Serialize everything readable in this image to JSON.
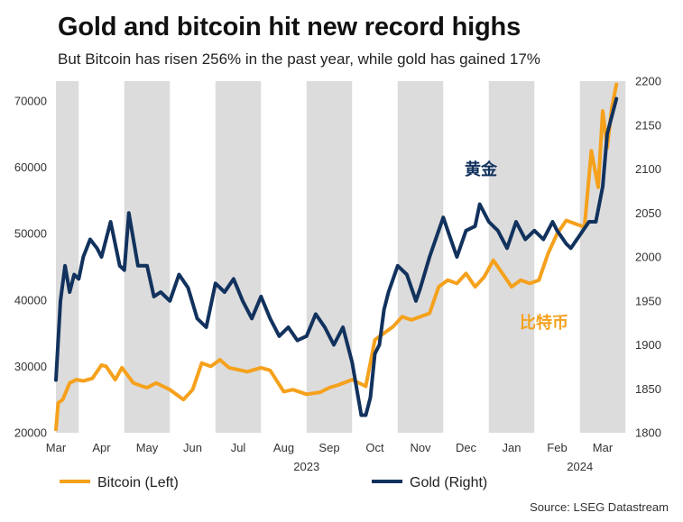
{
  "header": {
    "title": "Gold and bitcoin hit new record highs",
    "subtitle": "But Bitcoin has risen 256% in the past year, while gold has gained 17%"
  },
  "legend": {
    "bitcoin": "Bitcoin (Left)",
    "gold": "Gold (Right)"
  },
  "annotations": {
    "gold": "黄金",
    "bitcoin": "比特币"
  },
  "source": "Source: LSEG Datastream",
  "colors": {
    "bitcoin": "#f5a11c",
    "gold": "#12325e",
    "band": "#dcdcdc"
  },
  "chart_data": {
    "type": "line",
    "months": [
      "Mar",
      "Apr",
      "May",
      "Jun",
      "Jul",
      "Aug",
      "Sep",
      "Oct",
      "Nov",
      "Dec",
      "Jan",
      "Feb",
      "Mar"
    ],
    "years": [
      {
        "label": "2023",
        "month_index": 5.5
      },
      {
        "label": "2024",
        "month_index": 11.5
      }
    ],
    "left_axis": {
      "label": "Bitcoin",
      "ylim": [
        20000,
        73000
      ],
      "ticks": [
        "20000",
        "30000",
        "40000",
        "50000",
        "60000",
        "70000"
      ]
    },
    "right_axis": {
      "label": "Gold",
      "ylim": [
        1800,
        2200
      ],
      "ticks": [
        "1800",
        "1850",
        "1900",
        "1950",
        "2000",
        "2050",
        "2100",
        "2150",
        "2200"
      ]
    },
    "series": [
      {
        "name": "Bitcoin (Left)",
        "axis": "left",
        "x": [
          0.0,
          0.05,
          0.15,
          0.3,
          0.45,
          0.6,
          0.8,
          1.0,
          1.1,
          1.3,
          1.45,
          1.7,
          1.9,
          2.0,
          2.2,
          2.5,
          2.8,
          3.0,
          3.2,
          3.4,
          3.6,
          3.8,
          4.0,
          4.2,
          4.5,
          4.7,
          5.0,
          5.2,
          5.5,
          5.8,
          6.0,
          6.2,
          6.5,
          6.8,
          7.0,
          7.2,
          7.4,
          7.6,
          7.8,
          8.0,
          8.2,
          8.4,
          8.6,
          8.8,
          9.0,
          9.2,
          9.4,
          9.6,
          9.8,
          10.0,
          10.2,
          10.4,
          10.6,
          10.8,
          11.0,
          11.2,
          11.4,
          11.6,
          11.75,
          11.9,
          12.0,
          12.1,
          12.2,
          12.3
        ],
        "values": [
          20500,
          24500,
          25000,
          27500,
          28000,
          27800,
          28200,
          30200,
          30000,
          28000,
          29800,
          27500,
          27000,
          26800,
          27500,
          26500,
          25000,
          26500,
          30500,
          30000,
          31000,
          29800,
          29500,
          29200,
          29800,
          29400,
          26200,
          26500,
          25800,
          26100,
          26800,
          27200,
          28000,
          27000,
          34000,
          35000,
          36000,
          37500,
          37000,
          37500,
          38000,
          42000,
          43000,
          42500,
          44000,
          42000,
          43500,
          46000,
          44000,
          42000,
          43000,
          42500,
          43000,
          47000,
          50000,
          52000,
          51500,
          51000,
          62500,
          57000,
          68500,
          63000,
          69000,
          72500
        ]
      },
      {
        "name": "Gold (Right)",
        "axis": "right",
        "x": [
          0.0,
          0.1,
          0.2,
          0.3,
          0.4,
          0.5,
          0.6,
          0.75,
          0.9,
          1.0,
          1.2,
          1.4,
          1.5,
          1.6,
          1.8,
          2.0,
          2.15,
          2.3,
          2.5,
          2.7,
          2.9,
          3.1,
          3.3,
          3.5,
          3.7,
          3.9,
          4.1,
          4.3,
          4.5,
          4.7,
          4.9,
          5.1,
          5.3,
          5.5,
          5.7,
          5.9,
          6.1,
          6.3,
          6.5,
          6.7,
          6.8,
          6.9,
          7.0,
          7.1,
          7.2,
          7.3,
          7.5,
          7.7,
          7.9,
          8.0,
          8.2,
          8.4,
          8.5,
          8.6,
          8.8,
          9.0,
          9.2,
          9.3,
          9.5,
          9.7,
          9.9,
          10.1,
          10.3,
          10.5,
          10.7,
          10.9,
          11.0,
          11.2,
          11.3,
          11.5,
          11.7,
          11.85,
          12.0,
          12.1,
          12.2,
          12.3
        ],
        "values": [
          1860,
          1950,
          1990,
          1960,
          1980,
          1975,
          2000,
          2020,
          2010,
          2000,
          2040,
          1990,
          1985,
          2050,
          1990,
          1990,
          1955,
          1960,
          1950,
          1980,
          1965,
          1930,
          1920,
          1970,
          1960,
          1975,
          1950,
          1930,
          1955,
          1930,
          1910,
          1920,
          1905,
          1910,
          1935,
          1920,
          1900,
          1920,
          1880,
          1820,
          1820,
          1840,
          1890,
          1900,
          1940,
          1960,
          1990,
          1980,
          1950,
          1965,
          2000,
          2030,
          2045,
          2030,
          2000,
          2030,
          2035,
          2060,
          2040,
          2030,
          2010,
          2040,
          2020,
          2030,
          2020,
          2040,
          2030,
          2015,
          2010,
          2025,
          2040,
          2040,
          2080,
          2140,
          2160,
          2180
        ]
      }
    ],
    "grid": false,
    "shaded_bands": "alternate months",
    "legend_position": "bottom-left"
  }
}
